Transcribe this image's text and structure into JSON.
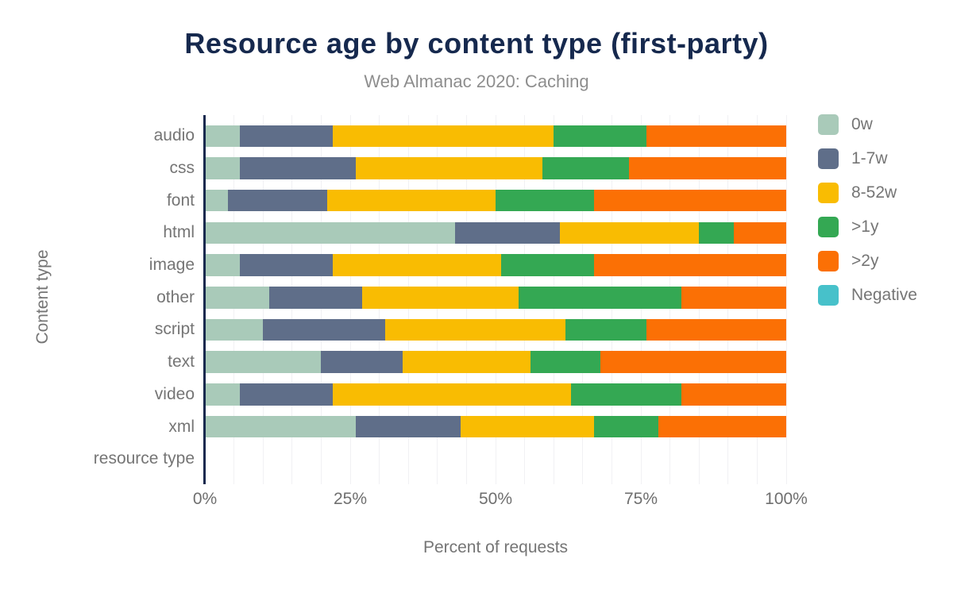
{
  "title": "Resource age by content type (first-party)",
  "subtitle": "Web Almanac 2020: Caching",
  "colors": {
    "title_text": "#16294e",
    "subtitle_text": "#8e8e8e",
    "axis_line": "#16294e",
    "axis_label_text": "#757575",
    "tick_label_text": "#6f6f6f",
    "gridline": "#f1f1f4",
    "background": "#ffffff"
  },
  "chart_data": {
    "type": "bar",
    "orientation": "horizontal",
    "stacked": true,
    "title": "Resource age by content type (first-party)",
    "subtitle": "Web Almanac 2020: Caching",
    "xlabel": "Percent of requests",
    "ylabel": "Content type",
    "xlim": [
      0,
      100
    ],
    "x_tick_labels": [
      "0%",
      "25%",
      "50%",
      "75%",
      "100%"
    ],
    "x_tick_values": [
      0,
      25,
      50,
      75,
      100
    ],
    "grid_step_percent": 5,
    "grid": true,
    "legend_position": "right",
    "categories": [
      "audio",
      "css",
      "font",
      "html",
      "image",
      "other",
      "script",
      "text",
      "video",
      "xml",
      "resource type"
    ],
    "series": [
      {
        "name": "0w",
        "color": "#a9cab9",
        "values": [
          6,
          6,
          4,
          43,
          6,
          11,
          10,
          20,
          6,
          26,
          0
        ]
      },
      {
        "name": "1-7w",
        "color": "#5f6e89",
        "values": [
          16,
          20,
          17,
          18,
          16,
          16,
          21,
          14,
          16,
          18,
          0
        ]
      },
      {
        "name": "8-52w",
        "color": "#f9bc02",
        "values": [
          38,
          32,
          29,
          24,
          29,
          27,
          31,
          22,
          41,
          23,
          0
        ]
      },
      {
        "name": ">1y",
        "color": "#34a853",
        "values": [
          16,
          15,
          17,
          6,
          16,
          28,
          14,
          12,
          19,
          11,
          0
        ]
      },
      {
        "name": ">2y",
        "color": "#fb7005",
        "values": [
          24,
          27,
          33,
          9,
          33,
          18,
          24,
          32,
          18,
          22,
          0
        ]
      },
      {
        "name": "Negative",
        "color": "#47c1ca",
        "values": [
          0,
          0,
          0,
          0,
          0,
          0,
          0,
          0,
          0,
          0,
          0
        ]
      }
    ]
  }
}
